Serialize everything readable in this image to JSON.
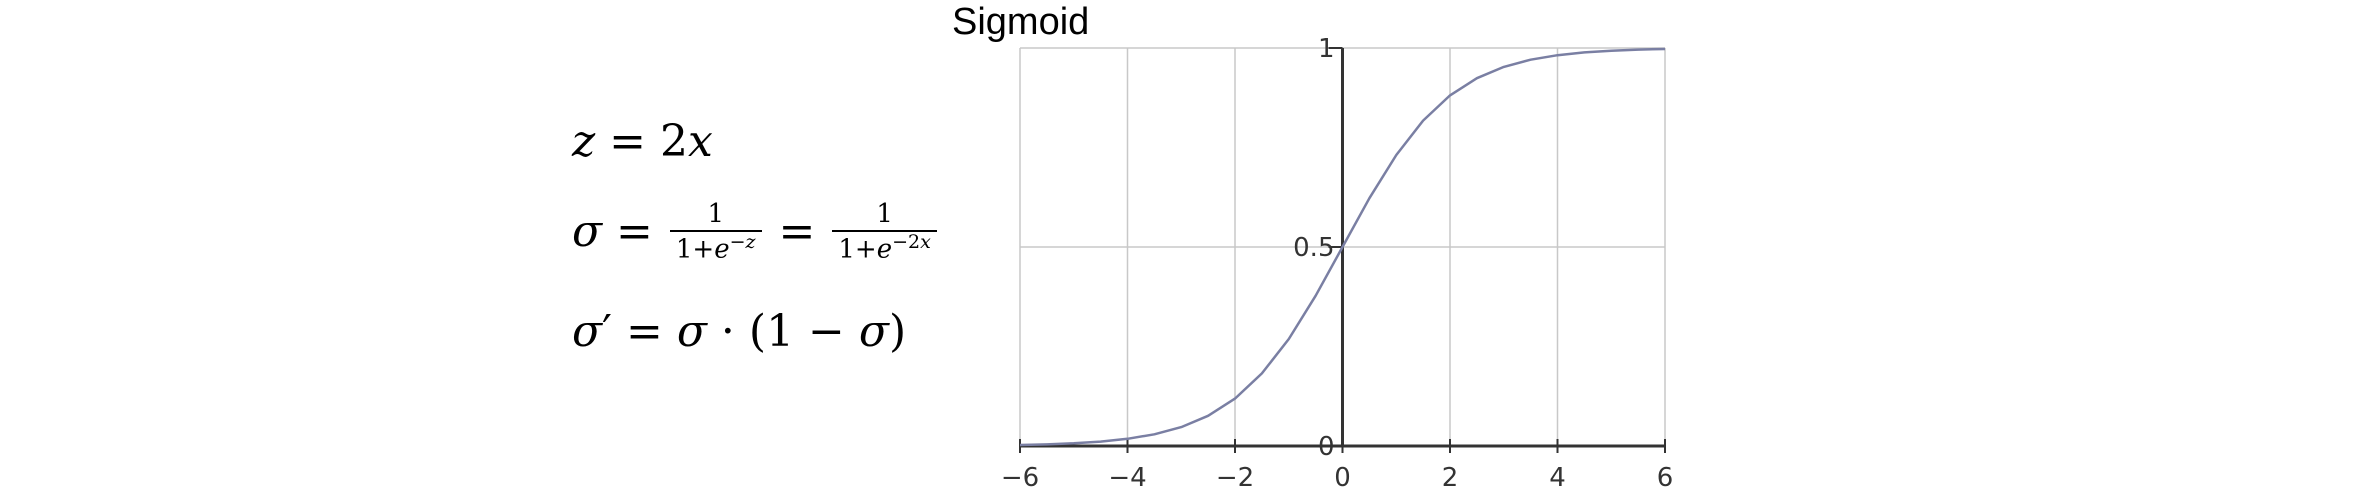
{
  "formulas": {
    "line1": "z = 2x",
    "line2": "σ = 1/(1+e^-z) = 1/(1+e^-2x)",
    "line3": "σ′ = σ · (1 − σ)"
  },
  "chart_data": {
    "type": "line",
    "title": "Sigmoid",
    "xlabel": "",
    "ylabel": "",
    "xlim": [
      -6,
      6
    ],
    "ylim": [
      0,
      1
    ],
    "xticks": [
      -6,
      -4,
      -2,
      0,
      2,
      4,
      6
    ],
    "xtick_labels": [
      "−6",
      "−4",
      "−2",
      "0",
      "2",
      "4",
      "6"
    ],
    "yticks": [
      0,
      0.5,
      1
    ],
    "ytick_labels": [
      "0",
      "0.5",
      "1"
    ],
    "grid": true,
    "series": [
      {
        "function": "1/(1+e^-x)",
        "color": "#7a7fa3",
        "x": [
          -6,
          -5.5,
          -5,
          -4.5,
          -4,
          -3.5,
          -3,
          -2.5,
          -2,
          -1.5,
          -1,
          -0.5,
          0,
          0.5,
          1,
          1.5,
          2,
          2.5,
          3,
          3.5,
          4,
          4.5,
          5,
          5.5,
          6
        ],
        "y": [
          0.0025,
          0.0041,
          0.0067,
          0.011,
          0.018,
          0.0293,
          0.0474,
          0.0759,
          0.1192,
          0.1824,
          0.2689,
          0.3775,
          0.5,
          0.6225,
          0.7311,
          0.8176,
          0.8808,
          0.9241,
          0.9526,
          0.9707,
          0.982,
          0.989,
          0.9933,
          0.9959,
          0.9975
        ]
      }
    ]
  },
  "colors": {
    "curve": "#7a7fa3",
    "grid": "#c8c8c8",
    "axis": "#333333",
    "text": "#000000"
  }
}
